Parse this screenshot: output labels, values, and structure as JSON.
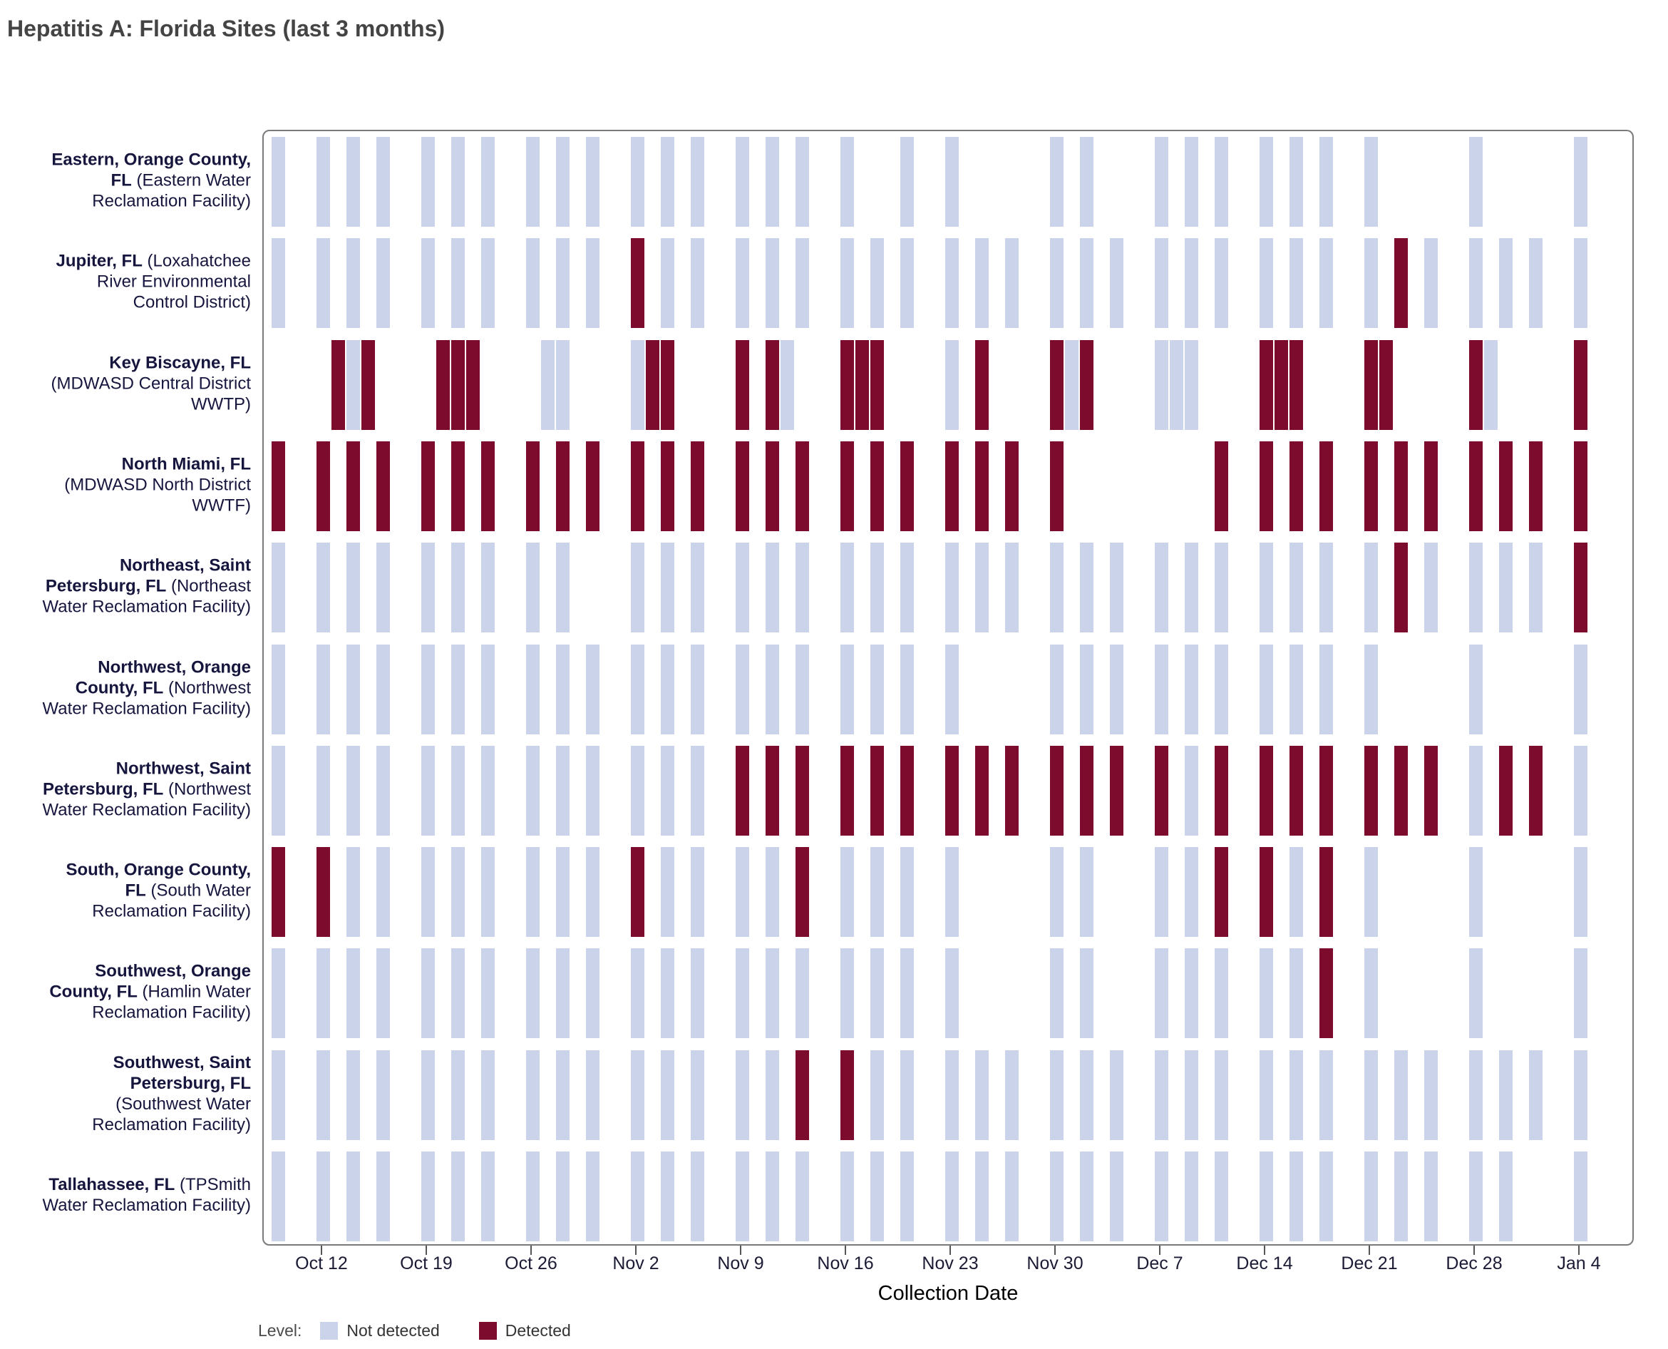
{
  "header": {
    "title": "Hepatitis A: Florida Sites (last 3 months)"
  },
  "axis": {
    "label": "Collection Date"
  },
  "legend": {
    "title": "Level:",
    "items": [
      {
        "key": "nd",
        "label": "Not detected",
        "color": "#cad3ea"
      },
      {
        "key": "det",
        "label": "Detected",
        "color": "#7d0b2e"
      }
    ]
  },
  "colors": {
    "not_detected": "#cad3ea",
    "detected": "#7d0b2e",
    "panel_border": "#7a7a7a",
    "title_text": "#444444",
    "site_label_text": "#15153d",
    "tick_text": "#1b1b35"
  },
  "chart_data": {
    "type": "heatmap",
    "title": "Hepatitis A: Florida Sites (last 3 months)",
    "xlabel": "Collection Date",
    "ylabel": "",
    "legend_title": "Level:",
    "legend_entries": [
      "Not detected",
      "Detected"
    ],
    "legend_position": "bottom-left",
    "grid": false,
    "x_range_dates": [
      "Oct 9",
      "Jan 7"
    ],
    "sampling_note": "tiles drawn per collection day; ~3 samples per week; gaps = no sample",
    "x_ticks": [
      {
        "label": "Oct 12",
        "day": 3
      },
      {
        "label": "Oct 19",
        "day": 10
      },
      {
        "label": "Oct 26",
        "day": 17
      },
      {
        "label": "Nov 2",
        "day": 24
      },
      {
        "label": "Nov 9",
        "day": 31
      },
      {
        "label": "Nov 16",
        "day": 38
      },
      {
        "label": "Nov 23",
        "day": 45
      },
      {
        "label": "Nov 30",
        "day": 52
      },
      {
        "label": "Dec 7",
        "day": 59
      },
      {
        "label": "Dec 14",
        "day": 66
      },
      {
        "label": "Dec 21",
        "day": 73
      },
      {
        "label": "Dec 28",
        "day": 80
      },
      {
        "label": "Jan 4",
        "day": 87
      }
    ],
    "dates": [
      "Oct 9",
      "Oct 10",
      "Oct 11",
      "Oct 12",
      "Oct 13",
      "Oct 14",
      "Oct 15",
      "Oct 16",
      "Oct 17",
      "Oct 18",
      "Oct 19",
      "Oct 20",
      "Oct 21",
      "Oct 22",
      "Oct 23",
      "Oct 24",
      "Oct 25",
      "Oct 26",
      "Oct 27",
      "Oct 28",
      "Oct 29",
      "Oct 30",
      "Oct 31",
      "Nov 1",
      "Nov 2",
      "Nov 3",
      "Nov 4",
      "Nov 5",
      "Nov 6",
      "Nov 7",
      "Nov 8",
      "Nov 9",
      "Nov 10",
      "Nov 11",
      "Nov 12",
      "Nov 13",
      "Nov 14",
      "Nov 15",
      "Nov 16",
      "Nov 17",
      "Nov 18",
      "Nov 19",
      "Nov 20",
      "Nov 21",
      "Nov 22",
      "Nov 23",
      "Nov 24",
      "Nov 25",
      "Nov 26",
      "Nov 27",
      "Nov 28",
      "Nov 29",
      "Nov 30",
      "Dec 1",
      "Dec 2",
      "Dec 3",
      "Dec 4",
      "Dec 5",
      "Dec 6",
      "Dec 7",
      "Dec 8",
      "Dec 9",
      "Dec 10",
      "Dec 11",
      "Dec 12",
      "Dec 13",
      "Dec 14",
      "Dec 15",
      "Dec 16",
      "Dec 17",
      "Dec 18",
      "Dec 19",
      "Dec 20",
      "Dec 21",
      "Dec 22",
      "Dec 23",
      "Dec 24",
      "Dec 25",
      "Dec 26",
      "Dec 27",
      "Dec 28",
      "Dec 29",
      "Dec 30",
      "Dec 31",
      "Jan 1",
      "Jan 2",
      "Jan 3",
      "Jan 4",
      "Jan 5",
      "Jan 6",
      "Jan 7"
    ],
    "sites": [
      {
        "name": "Eastern, Orange County, FL",
        "facility": "(Eastern Water Reclamation Facility)",
        "not_detected_days": [
          0,
          3,
          5,
          7,
          10,
          12,
          14,
          17,
          19,
          21,
          24,
          26,
          28,
          31,
          33,
          35,
          38,
          42,
          45,
          52,
          54,
          59,
          61,
          63,
          66,
          68,
          70,
          73,
          80,
          87
        ],
        "detected_days": []
      },
      {
        "name": "Jupiter, FL",
        "facility": "(Loxahatchee River Environmental Control District)",
        "not_detected_days": [
          0,
          3,
          5,
          7,
          10,
          12,
          14,
          17,
          19,
          21,
          26,
          28,
          31,
          33,
          35,
          38,
          40,
          42,
          45,
          47,
          49,
          52,
          54,
          56,
          59,
          61,
          63,
          66,
          68,
          70,
          73,
          77,
          80,
          82,
          84,
          87
        ],
        "detected_days": [
          24,
          75
        ]
      },
      {
        "name": "Key Biscayne, FL",
        "facility": "(MDWASD Central District WWTP)",
        "not_detected_days": [
          5,
          18,
          19,
          24,
          34,
          45,
          53,
          59,
          60,
          61,
          81
        ],
        "detected_days": [
          4,
          6,
          11,
          12,
          13,
          25,
          26,
          31,
          33,
          38,
          39,
          40,
          47,
          52,
          54,
          66,
          67,
          68,
          73,
          74,
          80,
          87
        ]
      },
      {
        "name": "North Miami, FL",
        "facility": "(MDWASD North District WWTF)",
        "not_detected_days": [],
        "detected_days": [
          0,
          3,
          5,
          7,
          10,
          12,
          14,
          17,
          19,
          21,
          24,
          26,
          28,
          31,
          33,
          35,
          38,
          40,
          42,
          45,
          47,
          49,
          52,
          63,
          66,
          68,
          70,
          73,
          75,
          77,
          80,
          82,
          84,
          87
        ]
      },
      {
        "name": "Northeast, Saint Petersburg, FL",
        "facility": "(Northeast Water Reclamation Facility)",
        "not_detected_days": [
          0,
          3,
          5,
          7,
          10,
          12,
          14,
          17,
          19,
          24,
          26,
          28,
          31,
          33,
          35,
          38,
          40,
          42,
          45,
          47,
          49,
          52,
          54,
          56,
          59,
          61,
          63,
          66,
          68,
          70,
          73,
          77,
          80,
          82,
          84
        ],
        "detected_days": [
          75,
          87
        ]
      },
      {
        "name": "Northwest, Orange County, FL",
        "facility": "(Northwest Water Reclamation Facility)",
        "not_detected_days": [
          0,
          3,
          5,
          7,
          10,
          12,
          14,
          17,
          19,
          21,
          24,
          26,
          28,
          31,
          33,
          35,
          38,
          40,
          42,
          45,
          52,
          54,
          56,
          59,
          61,
          63,
          66,
          68,
          70,
          73,
          80,
          87
        ],
        "detected_days": []
      },
      {
        "name": "Northwest, Saint Petersburg, FL",
        "facility": "(Northwest Water Reclamation Facility)",
        "not_detected_days": [
          0,
          3,
          5,
          7,
          10,
          12,
          14,
          17,
          19,
          21,
          24,
          26,
          28,
          61,
          80,
          87
        ],
        "detected_days": [
          31,
          33,
          35,
          38,
          40,
          42,
          45,
          47,
          49,
          52,
          54,
          56,
          59,
          63,
          66,
          68,
          70,
          73,
          75,
          77,
          82,
          84
        ]
      },
      {
        "name": "South, Orange County, FL",
        "facility": "(South Water Reclamation Facility)",
        "not_detected_days": [
          5,
          7,
          10,
          12,
          14,
          17,
          19,
          21,
          26,
          28,
          31,
          33,
          38,
          40,
          42,
          45,
          52,
          54,
          59,
          61,
          68,
          73,
          80,
          87
        ],
        "detected_days": [
          0,
          3,
          24,
          35,
          63,
          66,
          70
        ]
      },
      {
        "name": "Southwest, Orange County, FL",
        "facility": "(Hamlin Water Reclamation Facility)",
        "not_detected_days": [
          0,
          3,
          5,
          7,
          10,
          12,
          14,
          17,
          19,
          21,
          24,
          26,
          28,
          31,
          33,
          35,
          38,
          40,
          42,
          45,
          52,
          54,
          59,
          61,
          63,
          66,
          68,
          73,
          80,
          87
        ],
        "detected_days": [
          70
        ]
      },
      {
        "name": "Southwest, Saint Petersburg, FL",
        "facility": "(Southwest Water Reclamation Facility)",
        "not_detected_days": [
          0,
          3,
          5,
          7,
          10,
          12,
          14,
          17,
          19,
          21,
          24,
          26,
          28,
          31,
          33,
          40,
          42,
          45,
          47,
          49,
          52,
          54,
          56,
          59,
          61,
          63,
          66,
          68,
          70,
          73,
          75,
          77,
          80,
          82,
          84,
          87
        ],
        "detected_days": [
          35,
          38
        ]
      },
      {
        "name": "Tallahassee, FL",
        "facility": "(TPSmith Water Reclamation Facility)",
        "not_detected_days": [
          0,
          3,
          5,
          7,
          10,
          12,
          14,
          17,
          19,
          21,
          24,
          26,
          28,
          31,
          33,
          35,
          38,
          40,
          42,
          45,
          47,
          49,
          52,
          54,
          56,
          59,
          61,
          63,
          66,
          68,
          70,
          73,
          75,
          77,
          80,
          82,
          87
        ],
        "detected_days": []
      }
    ]
  }
}
